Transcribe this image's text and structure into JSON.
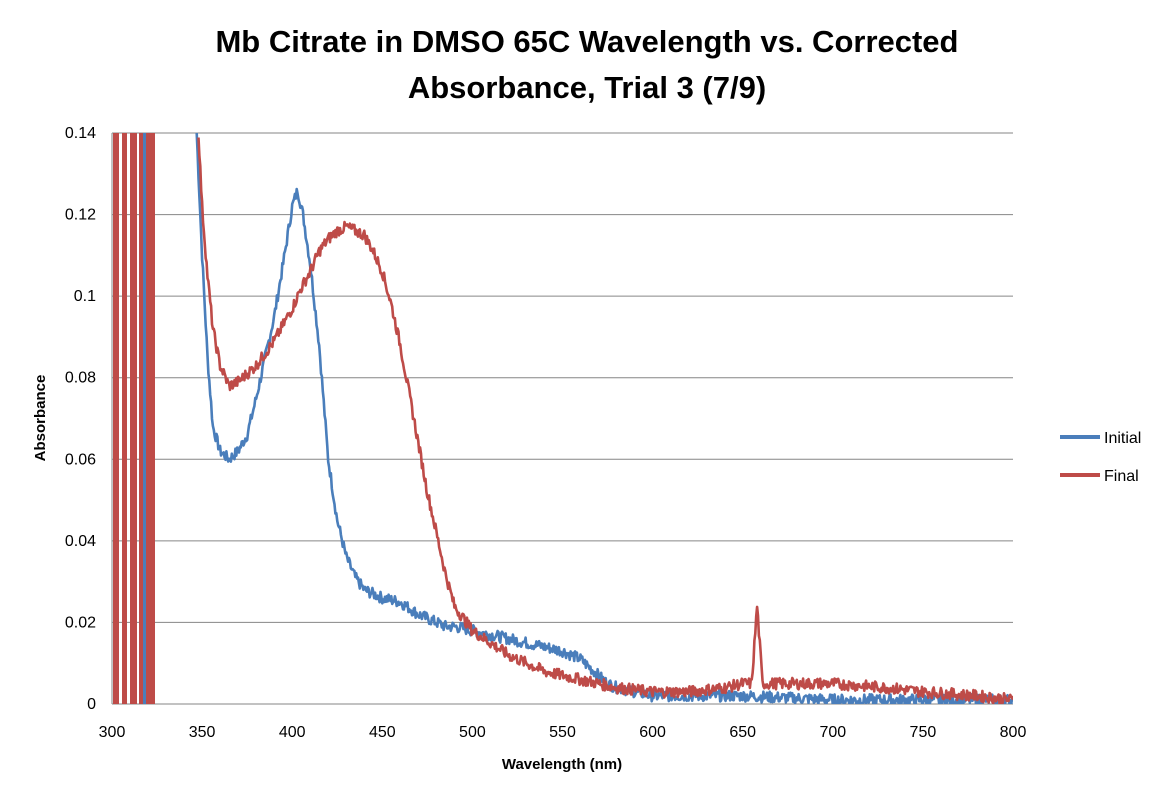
{
  "chart_data": {
    "type": "line",
    "title_lines": [
      "Mb Citrate in DMSO 65C Wavelength vs. Corrected",
      "Absorbance, Trial 3 (7/9)"
    ],
    "xlabel": "Wavelength (nm)",
    "ylabel": "Absorbance",
    "xlim": [
      300,
      800
    ],
    "ylim": [
      0,
      0.14
    ],
    "x_ticks": [
      300,
      350,
      400,
      450,
      500,
      550,
      600,
      650,
      700,
      750,
      800
    ],
    "x_tick_labels": [
      "300",
      "350",
      "400",
      "450",
      "500",
      "550",
      "600",
      "650",
      "700",
      "750",
      "800"
    ],
    "y_ticks": [
      0,
      0.02,
      0.04,
      0.06,
      0.08,
      0.1,
      0.12,
      0.14
    ],
    "y_tick_labels": [
      "0",
      "0.02",
      "0.04",
      "0.06",
      "0.08",
      "0.1",
      "0.12",
      "0.14"
    ],
    "grid": "horizontal",
    "legend_position": "right",
    "series": [
      {
        "name": "Initial",
        "color": "#4a7ebb",
        "x": [
          347,
          350,
          353,
          356,
          360,
          365,
          370,
          375,
          380,
          385,
          390,
          395,
          400,
          403,
          406,
          410,
          415,
          420,
          425,
          430,
          435,
          440,
          450,
          460,
          470,
          480,
          485,
          490,
          500,
          510,
          520,
          530,
          540,
          550,
          560,
          570,
          575,
          580,
          590,
          600,
          620,
          650,
          700,
          750,
          800
        ],
        "y": [
          0.14,
          0.11,
          0.085,
          0.068,
          0.062,
          0.06,
          0.062,
          0.066,
          0.075,
          0.085,
          0.095,
          0.108,
          0.122,
          0.126,
          0.12,
          0.108,
          0.088,
          0.06,
          0.045,
          0.036,
          0.031,
          0.028,
          0.026,
          0.025,
          0.022,
          0.02,
          0.019,
          0.019,
          0.018,
          0.017,
          0.016,
          0.015,
          0.014,
          0.013,
          0.011,
          0.007,
          0.005,
          0.004,
          0.003,
          0.002,
          0.002,
          0.002,
          0.001,
          0.001,
          0.001
        ]
      },
      {
        "name": "Final",
        "color": "#be4b48",
        "x": [
          348,
          350,
          353,
          356,
          360,
          365,
          370,
          375,
          380,
          385,
          390,
          395,
          400,
          405,
          410,
          415,
          420,
          425,
          430,
          435,
          440,
          445,
          450,
          455,
          460,
          465,
          470,
          475,
          480,
          485,
          490,
          500,
          510,
          520,
          530,
          540,
          550,
          560,
          570,
          580,
          600,
          620,
          640,
          650,
          655,
          658,
          661,
          670,
          700,
          730,
          750,
          780,
          800
        ],
        "y": [
          0.14,
          0.122,
          0.105,
          0.092,
          0.083,
          0.078,
          0.079,
          0.081,
          0.083,
          0.086,
          0.089,
          0.093,
          0.097,
          0.102,
          0.106,
          0.111,
          0.114,
          0.116,
          0.117,
          0.116,
          0.115,
          0.111,
          0.106,
          0.098,
          0.088,
          0.076,
          0.064,
          0.052,
          0.042,
          0.032,
          0.024,
          0.018,
          0.015,
          0.012,
          0.01,
          0.008,
          0.007,
          0.006,
          0.005,
          0.004,
          0.003,
          0.003,
          0.004,
          0.005,
          0.005,
          0.024,
          0.005,
          0.005,
          0.005,
          0.004,
          0.003,
          0.002,
          0.001
        ]
      }
    ]
  }
}
